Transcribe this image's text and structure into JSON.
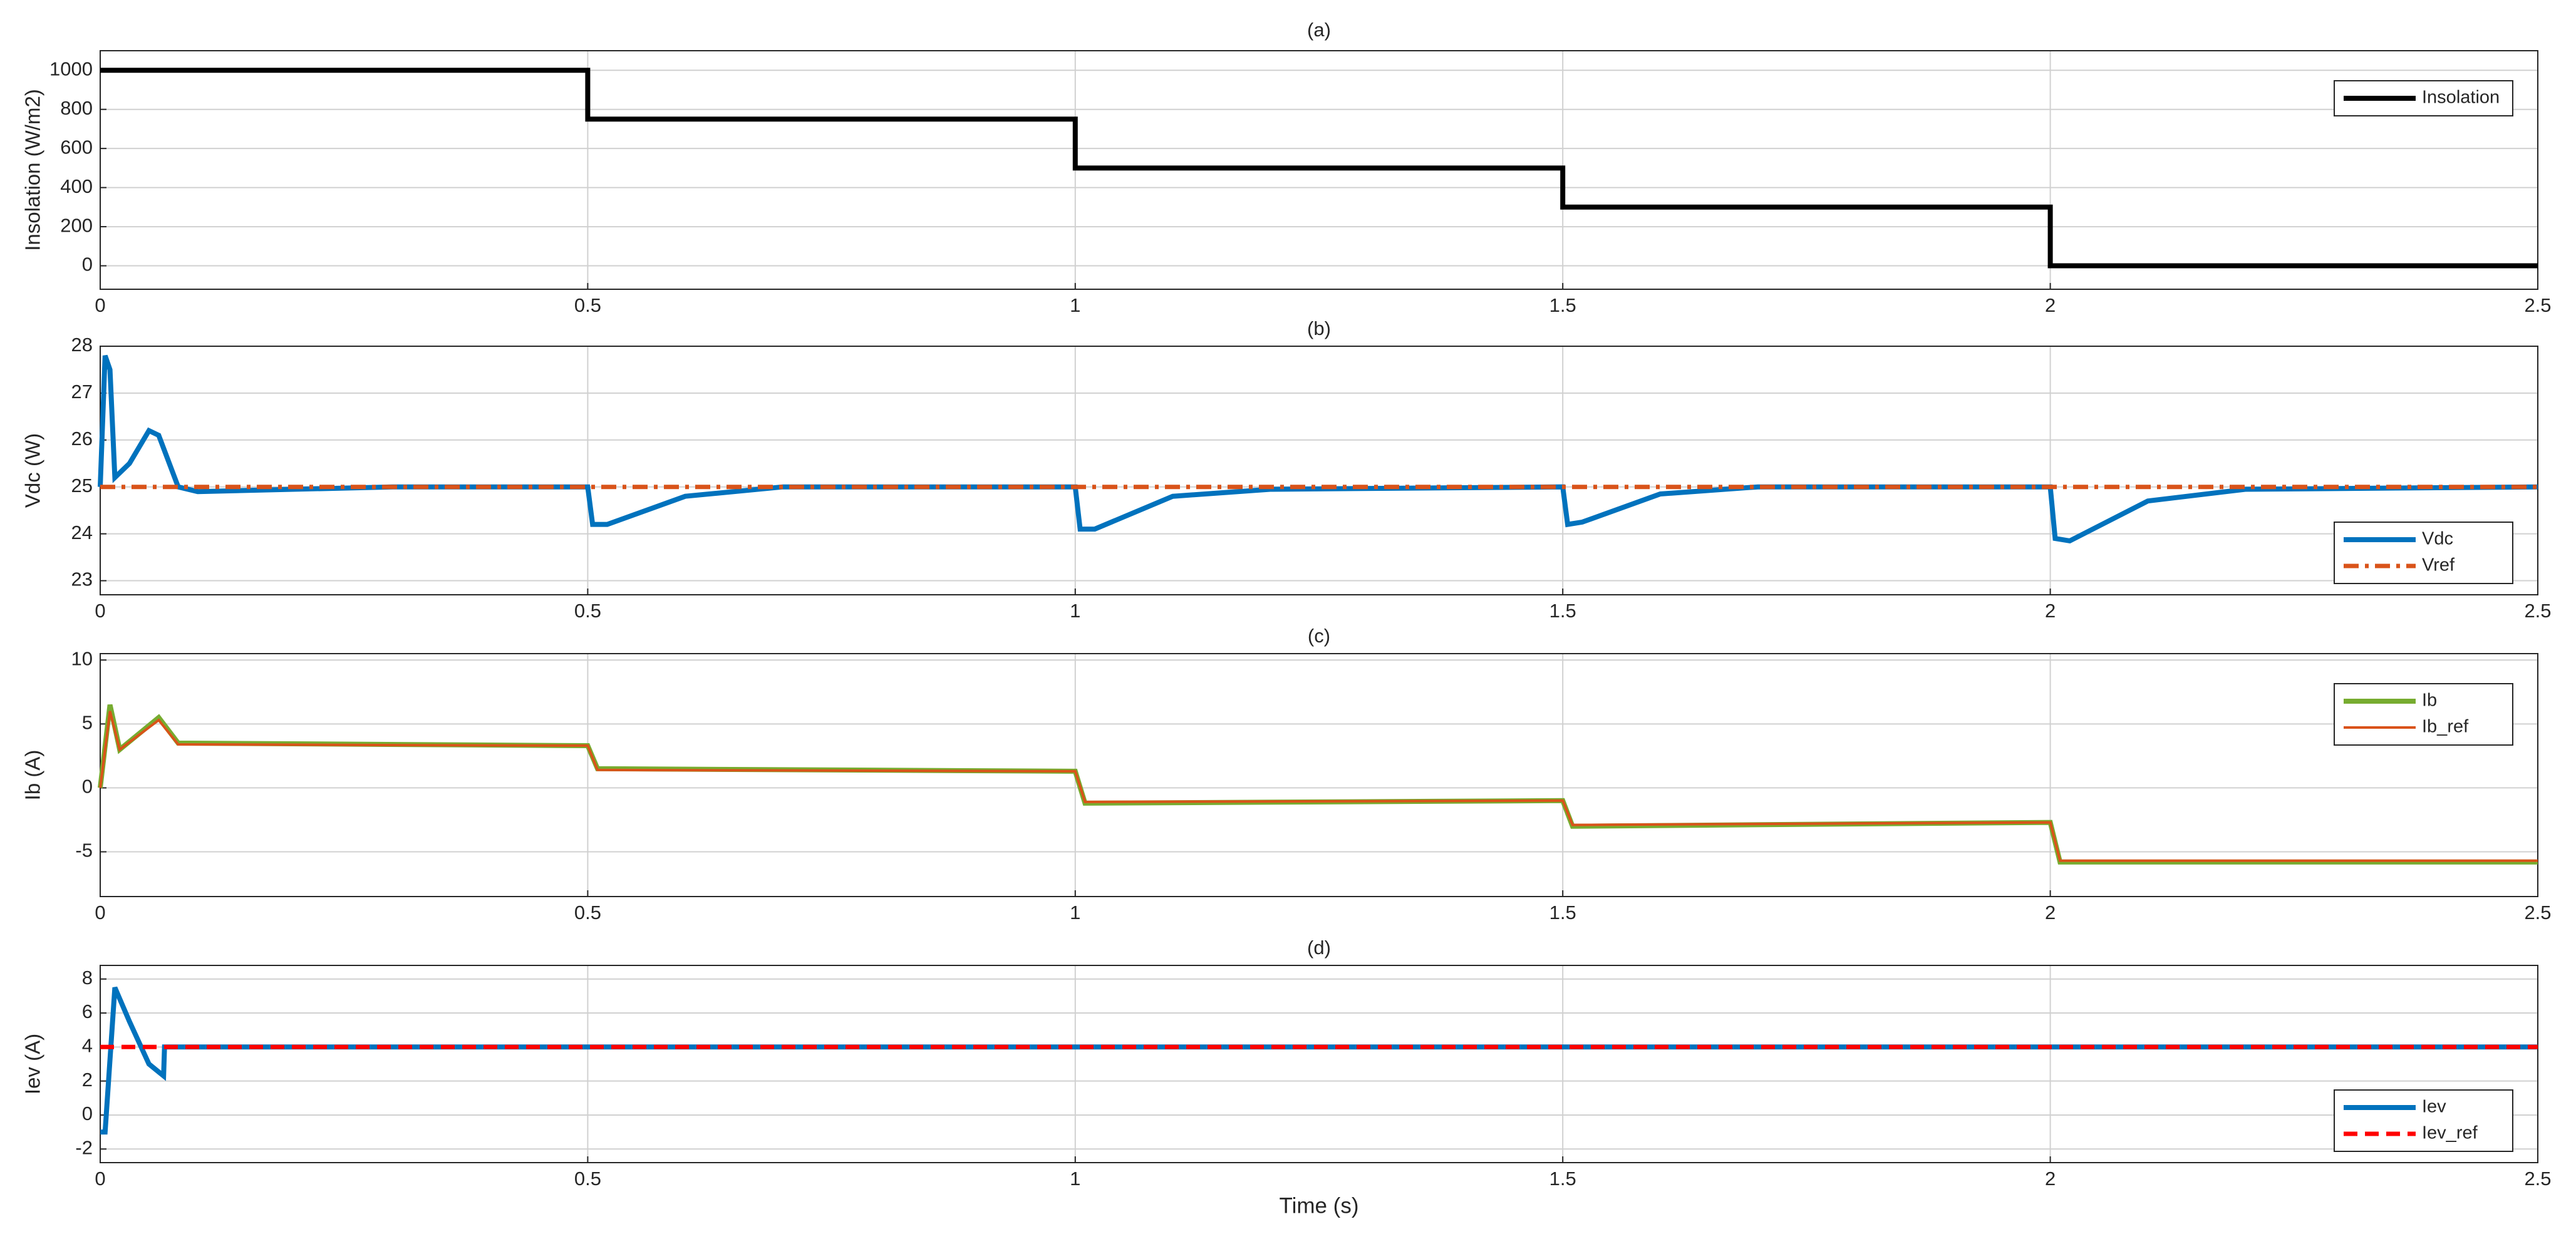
{
  "chart_data": [
    {
      "type": "line",
      "title": "(a)",
      "ylabel": "Insolation (W/m2)",
      "xlim": [
        0,
        2.5
      ],
      "xticks": [
        0,
        0.5,
        1,
        1.5,
        2,
        2.5
      ],
      "ylim": [
        -120,
        1100
      ],
      "yticks": [
        0,
        200,
        400,
        600,
        800,
        1000
      ],
      "grid": true,
      "legend": "top-right",
      "series": [
        {
          "name": "Insolation",
          "color": "#000000",
          "dash": "solid",
          "x": [
            0,
            0.5,
            0.5,
            1,
            1,
            1.5,
            1.5,
            2,
            2,
            2.5
          ],
          "values": [
            1000,
            1000,
            750,
            750,
            500,
            500,
            300,
            300,
            0,
            0
          ]
        }
      ]
    },
    {
      "type": "line",
      "title": "(b)",
      "ylabel": "Vdc (W)",
      "xlim": [
        0,
        2.5
      ],
      "xticks": [
        0,
        0.5,
        1,
        1.5,
        2,
        2.5
      ],
      "ylim": [
        22.7,
        28
      ],
      "yticks": [
        23,
        24,
        25,
        26,
        27,
        28
      ],
      "grid": true,
      "legend": "bottom-right",
      "series": [
        {
          "name": "Vdc",
          "color": "#0072bd",
          "dash": "solid",
          "x": [
            0,
            0.005,
            0.01,
            0.015,
            0.03,
            0.05,
            0.06,
            0.08,
            0.1,
            0.3,
            0.5,
            0.505,
            0.52,
            0.6,
            0.7,
            1,
            1.005,
            1.02,
            1.1,
            1.2,
            1.5,
            1.505,
            1.52,
            1.6,
            1.7,
            2,
            2.005,
            2.02,
            2.1,
            2.2,
            2.5
          ],
          "values": [
            25,
            27.8,
            27.5,
            25.2,
            25.5,
            26.2,
            26.1,
            25,
            24.9,
            25,
            25,
            24.2,
            24.2,
            24.8,
            25,
            25,
            24.1,
            24.1,
            24.8,
            24.95,
            25,
            24.2,
            24.25,
            24.85,
            25,
            25,
            23.9,
            23.85,
            24.7,
            24.95,
            25
          ]
        },
        {
          "name": "Vref",
          "color": "#d95319",
          "dash": "dashdot",
          "x": [
            0,
            2.5
          ],
          "values": [
            25,
            25
          ]
        }
      ]
    },
    {
      "type": "line",
      "title": "(c)",
      "ylabel": "Ib (A)",
      "xlim": [
        0,
        2.5
      ],
      "xticks": [
        0,
        0.5,
        1,
        1.5,
        2,
        2.5
      ],
      "ylim": [
        -8.5,
        10.5
      ],
      "yticks": [
        -5,
        0,
        5,
        10
      ],
      "grid": true,
      "legend": "top-right",
      "series": [
        {
          "name": "Ib",
          "color": "#77ac30",
          "dash": "solid",
          "x": [
            0,
            0.01,
            0.02,
            0.06,
            0.08,
            0.5,
            0.51,
            1,
            1.01,
            1.5,
            1.51,
            2,
            2.01,
            2.5
          ],
          "values": [
            0,
            6.5,
            3,
            5.5,
            3.5,
            3.3,
            1.5,
            1.3,
            -1.2,
            -1,
            -3,
            -2.7,
            -5.8,
            -5.8
          ]
        },
        {
          "name": "Ib_ref",
          "color": "#d95319",
          "dash": "solid",
          "x": [
            0,
            0.01,
            0.02,
            0.06,
            0.08,
            0.5,
            0.51,
            1,
            1.01,
            1.5,
            1.51,
            2,
            2.01,
            2.5
          ],
          "values": [
            0,
            6,
            3,
            5.3,
            3.4,
            3.3,
            1.4,
            1.3,
            -1.1,
            -1,
            -2.9,
            -2.7,
            -5.7,
            -5.7
          ]
        }
      ]
    },
    {
      "type": "line",
      "title": "(d)",
      "ylabel": "Iev (A)",
      "xlabel": "Time (s)",
      "xlim": [
        0,
        2.5
      ],
      "xticks": [
        0,
        0.5,
        1,
        1.5,
        2,
        2.5
      ],
      "ylim": [
        -2.8,
        8.8
      ],
      "yticks": [
        -2,
        0,
        2,
        4,
        6,
        8
      ],
      "grid": true,
      "legend": "bottom-right",
      "series": [
        {
          "name": "Iev",
          "color": "#0072bd",
          "dash": "solid",
          "x": [
            0,
            0.005,
            0.015,
            0.03,
            0.05,
            0.065,
            0.066,
            2.5
          ],
          "values": [
            -1,
            -1,
            7.5,
            5.5,
            3,
            2.3,
            4,
            4
          ]
        },
        {
          "name": "Iev_ref",
          "color": "#ff0000",
          "dash": "dashed",
          "x": [
            0,
            2.5
          ],
          "values": [
            4,
            4
          ]
        }
      ]
    }
  ]
}
